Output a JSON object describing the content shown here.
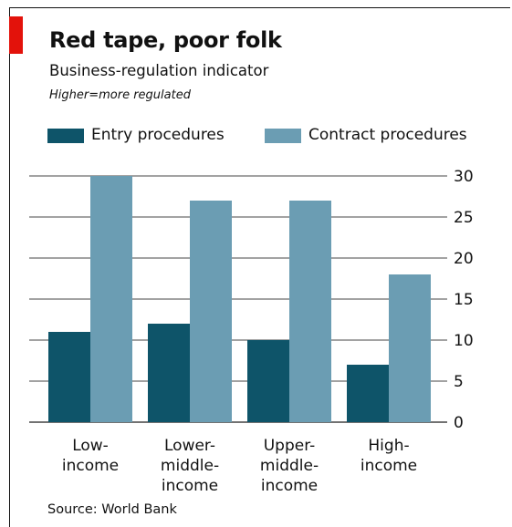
{
  "header": {
    "title": "Red tape, poor folk",
    "subtitle": "Business-regulation indicator",
    "note": "Higher=more regulated"
  },
  "colors": {
    "accent": "#e3120b",
    "entry": "#0e5469",
    "contract": "#6b9db3",
    "grid": "#444444"
  },
  "chart_data": {
    "type": "bar",
    "categories": [
      "Low-\nincome",
      "Lower-\nmiddle-\nincome",
      "Upper-\nmiddle-\nincome",
      "High-\nincome"
    ],
    "series": [
      {
        "name": "Entry procedures",
        "values": [
          11,
          12,
          10,
          7
        ]
      },
      {
        "name": "Contract procedures",
        "values": [
          30,
          27,
          27,
          18
        ]
      }
    ],
    "yticks": [
      "0",
      "5",
      "10",
      "15",
      "20",
      "25",
      "30"
    ],
    "ylim": [
      0,
      30
    ],
    "grid": true,
    "y_axis_side": "right",
    "legend_placement": "top"
  },
  "footer": {
    "source": "Source: World Bank"
  }
}
